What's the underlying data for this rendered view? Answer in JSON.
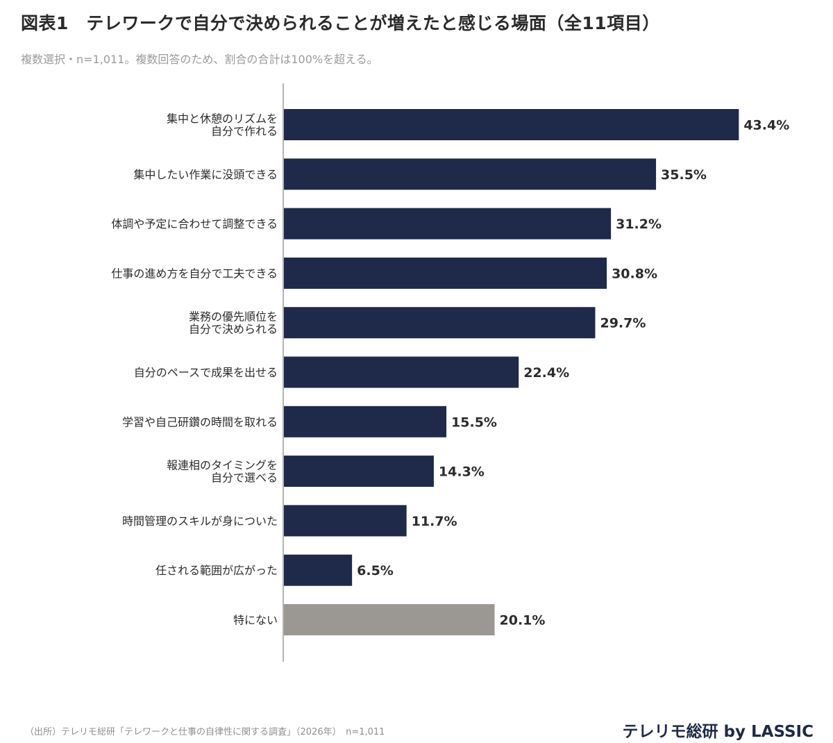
{
  "header": {
    "title": "図表1　テレワークで自分で決められることが増えたと感じる場面（全11項目）",
    "subtitle": "複数選択・n=1,011。複数回答のため、割合の合計は100%を超える。"
  },
  "footer": {
    "source": "（出所）テレリモ総研「テレワークと仕事の自律性に関する調査」（2026年）　n=1,011",
    "brand": "テレリモ総研 by LASSIC"
  },
  "colors": {
    "bar": "#1f2a4a",
    "bar_highlight": "#9b9893",
    "axis": "#9a9a9a",
    "label": "#2b2b2b"
  },
  "chart_data": {
    "type": "bar",
    "orientation": "horizontal",
    "categories": [
      [
        "集中と休憩のリズムを",
        "自分で作れる"
      ],
      [
        "集中したい作業に没頭できる"
      ],
      [
        "体調や予定に合わせて調整できる"
      ],
      [
        "仕事の進め方を自分で工夫できる"
      ],
      [
        "業務の優先順位を",
        "自分で決められる"
      ],
      [
        "自分のペースで成果を出せる"
      ],
      [
        "学習や自己研鑽の時間を取れる"
      ],
      [
        "報連相のタイミングを",
        "自分で選べる"
      ],
      [
        "時間管理のスキルが身についた"
      ],
      [
        "任される範囲が広がった"
      ],
      [
        "特にない"
      ]
    ],
    "values": [
      43.4,
      35.5,
      31.2,
      30.8,
      29.7,
      22.4,
      15.5,
      14.3,
      11.7,
      6.5,
      20.1
    ],
    "value_labels": [
      "43.4%",
      "35.5%",
      "31.2%",
      "30.8%",
      "29.7%",
      "22.4%",
      "15.5%",
      "14.3%",
      "11.7%",
      "6.5%",
      "20.1%"
    ],
    "highlight_index": 10,
    "unit": "%",
    "grid": false,
    "legend": "none"
  }
}
